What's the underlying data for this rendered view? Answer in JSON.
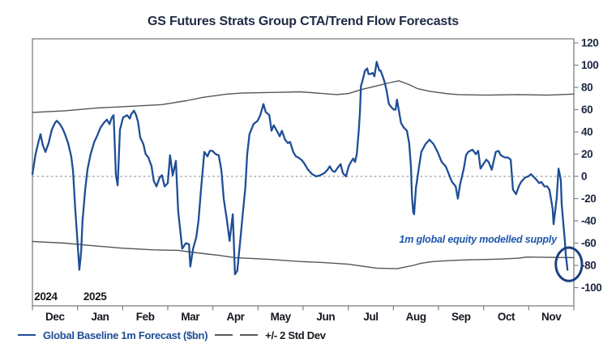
{
  "title": "GS Futures Strats Group CTA/Trend Flow Forecasts",
  "legend": {
    "items": [
      {
        "label": "Global Baseline 1m Forecast ($bn)",
        "color": "#1f4e96"
      },
      {
        "label": "+/- 2 Std Dev",
        "color": "#595959"
      }
    ]
  },
  "colors": {
    "line": "#1f4e96",
    "band": "#555555",
    "frame": "#808080",
    "zero_line": "#ababab",
    "annotation": "#1e56ad",
    "ellipse": "#1b4080",
    "title_text": "#1e2a45",
    "axis_text": "#1c2640"
  },
  "chart_data": {
    "type": "line",
    "title": "GS Futures Strats Group CTA/Trend Flow Forecasts",
    "xlabel": "",
    "ylabel": "",
    "ylim": [
      -100,
      120
    ],
    "grid": false,
    "legend_position": "bottom",
    "y_axis": {
      "side": "right",
      "ticks": [
        120,
        100,
        80,
        60,
        40,
        20,
        0,
        -20,
        -40,
        -60,
        -80,
        -100
      ]
    },
    "x_axis": {
      "unit": "months since 2024-12-01",
      "range": [
        0,
        12
      ],
      "tick_labels": [
        "Dec",
        "Jan",
        "Feb",
        "Mar",
        "Apr",
        "May",
        "Jun",
        "Jul",
        "Aug",
        "Sep",
        "Oct",
        "Nov"
      ],
      "year_labels": [
        {
          "text": "2024",
          "t": 0.04
        },
        {
          "text": "2025",
          "t": 1.13
        }
      ]
    },
    "zero_line": {
      "value": 0,
      "style": "dotted"
    },
    "annotation": {
      "text": "1m global equity modelled supply",
      "t": 11.62,
      "v": -61,
      "anchor": "end"
    },
    "highlight_ellipse": {
      "t": 11.89,
      "v": -79,
      "rt": 0.29,
      "rv": 15
    },
    "series": [
      {
        "name": "Global Baseline 1m Forecast ($bn)",
        "color": "#1f4e96",
        "width": 2.3,
        "points": [
          [
            0,
            2
          ],
          [
            0.07,
            20
          ],
          [
            0.14,
            32
          ],
          [
            0.18,
            38
          ],
          [
            0.23,
            28
          ],
          [
            0.29,
            22
          ],
          [
            0.36,
            30
          ],
          [
            0.43,
            42
          ],
          [
            0.5,
            48
          ],
          [
            0.54,
            50
          ],
          [
            0.61,
            47
          ],
          [
            0.68,
            42
          ],
          [
            0.72,
            38
          ],
          [
            0.79,
            30
          ],
          [
            0.86,
            18
          ],
          [
            0.9,
            5
          ],
          [
            0.95,
            -30
          ],
          [
            1.01,
            -65
          ],
          [
            1.04,
            -84
          ],
          [
            1.08,
            -68
          ],
          [
            1.11,
            -40
          ],
          [
            1.17,
            -12
          ],
          [
            1.22,
            6
          ],
          [
            1.29,
            20
          ],
          [
            1.37,
            31
          ],
          [
            1.44,
            37
          ],
          [
            1.51,
            44
          ],
          [
            1.58,
            48
          ],
          [
            1.65,
            51
          ],
          [
            1.71,
            47
          ],
          [
            1.76,
            53
          ],
          [
            1.8,
            55
          ],
          [
            1.85,
            1
          ],
          [
            1.89,
            -8
          ],
          [
            1.94,
            42
          ],
          [
            2.01,
            53
          ],
          [
            2.1,
            55
          ],
          [
            2.16,
            52
          ],
          [
            2.19,
            56
          ],
          [
            2.25,
            59
          ],
          [
            2.3,
            55
          ],
          [
            2.34,
            49
          ],
          [
            2.39,
            35
          ],
          [
            2.46,
            29
          ],
          [
            2.51,
            20
          ],
          [
            2.57,
            17
          ],
          [
            2.64,
            9
          ],
          [
            2.69,
            -4
          ],
          [
            2.75,
            -9
          ],
          [
            2.82,
            -1
          ],
          [
            2.87,
            1
          ],
          [
            2.93,
            -9
          ],
          [
            3,
            -6
          ],
          [
            3.05,
            19
          ],
          [
            3.11,
            1
          ],
          [
            3.18,
            14
          ],
          [
            3.23,
            -31
          ],
          [
            3.32,
            -65
          ],
          [
            3.4,
            -60
          ],
          [
            3.47,
            -61
          ],
          [
            3.5,
            -81
          ],
          [
            3.56,
            -65
          ],
          [
            3.63,
            -55
          ],
          [
            3.68,
            -40
          ],
          [
            3.74,
            -10
          ],
          [
            3.81,
            22
          ],
          [
            3.88,
            18
          ],
          [
            3.93,
            23
          ],
          [
            3.99,
            23
          ],
          [
            4.06,
            20
          ],
          [
            4.13,
            19
          ],
          [
            4.19,
            5
          ],
          [
            4.24,
            -20
          ],
          [
            4.31,
            -39
          ],
          [
            4.37,
            -58
          ],
          [
            4.44,
            -34
          ],
          [
            4.46,
            -55
          ],
          [
            4.49,
            -88
          ],
          [
            4.54,
            -85
          ],
          [
            4.6,
            -60
          ],
          [
            4.67,
            -30
          ],
          [
            4.72,
            -10
          ],
          [
            4.76,
            20
          ],
          [
            4.81,
            38
          ],
          [
            4.9,
            47
          ],
          [
            4.99,
            50
          ],
          [
            5.05,
            55
          ],
          [
            5.12,
            65
          ],
          [
            5.17,
            58
          ],
          [
            5.25,
            55
          ],
          [
            5.3,
            41
          ],
          [
            5.35,
            46
          ],
          [
            5.43,
            40
          ],
          [
            5.48,
            36
          ],
          [
            5.53,
            41
          ],
          [
            5.6,
            33
          ],
          [
            5.66,
            30
          ],
          [
            5.71,
            31
          ],
          [
            5.78,
            22
          ],
          [
            5.84,
            18
          ],
          [
            5.89,
            17
          ],
          [
            5.96,
            15
          ],
          [
            6.02,
            12
          ],
          [
            6.11,
            6
          ],
          [
            6.2,
            2
          ],
          [
            6.29,
            0
          ],
          [
            6.38,
            1
          ],
          [
            6.47,
            3
          ],
          [
            6.54,
            6
          ],
          [
            6.59,
            9
          ],
          [
            6.65,
            5
          ],
          [
            6.7,
            4
          ],
          [
            6.77,
            8
          ],
          [
            6.83,
            11
          ],
          [
            6.88,
            3
          ],
          [
            6.95,
            0
          ],
          [
            7.01,
            9
          ],
          [
            7.06,
            13
          ],
          [
            7.11,
            16
          ],
          [
            7.15,
            13
          ],
          [
            7.19,
            20
          ],
          [
            7.23,
            40
          ],
          [
            7.26,
            58
          ],
          [
            7.28,
            81
          ],
          [
            7.31,
            85
          ],
          [
            7.37,
            95
          ],
          [
            7.42,
            97
          ],
          [
            7.45,
            92
          ],
          [
            7.49,
            92
          ],
          [
            7.54,
            93
          ],
          [
            7.58,
            90
          ],
          [
            7.63,
            103
          ],
          [
            7.69,
            95
          ],
          [
            7.72,
            95
          ],
          [
            7.78,
            88
          ],
          [
            7.81,
            84
          ],
          [
            7.85,
            77
          ],
          [
            7.9,
            65
          ],
          [
            7.96,
            62
          ],
          [
            8.01,
            60
          ],
          [
            8.05,
            60
          ],
          [
            8.08,
            69
          ],
          [
            8.14,
            55
          ],
          [
            8.17,
            48
          ],
          [
            8.23,
            44
          ],
          [
            8.3,
            41
          ],
          [
            8.35,
            30
          ],
          [
            8.39,
            9
          ],
          [
            8.41,
            -17
          ],
          [
            8.44,
            -32
          ],
          [
            8.46,
            -34
          ],
          [
            8.5,
            -10
          ],
          [
            8.57,
            9
          ],
          [
            8.62,
            22
          ],
          [
            8.71,
            29
          ],
          [
            8.8,
            33
          ],
          [
            8.89,
            29
          ],
          [
            8.98,
            22
          ],
          [
            9.07,
            13
          ],
          [
            9.16,
            9
          ],
          [
            9.25,
            0
          ],
          [
            9.3,
            -5
          ],
          [
            9.38,
            -9
          ],
          [
            9.43,
            -20
          ],
          [
            9.48,
            -7
          ],
          [
            9.56,
            7
          ],
          [
            9.61,
            19
          ],
          [
            9.66,
            22
          ],
          [
            9.75,
            24
          ],
          [
            9.83,
            20
          ],
          [
            9.88,
            23
          ],
          [
            9.93,
            7
          ],
          [
            10.01,
            12
          ],
          [
            10.06,
            15
          ],
          [
            10.11,
            13
          ],
          [
            10.18,
            6
          ],
          [
            10.27,
            22
          ],
          [
            10.33,
            23
          ],
          [
            10.38,
            19
          ],
          [
            10.47,
            17
          ],
          [
            10.54,
            17
          ],
          [
            10.6,
            15
          ],
          [
            10.65,
            -12
          ],
          [
            10.72,
            -16
          ],
          [
            10.78,
            -9
          ],
          [
            10.83,
            -5
          ],
          [
            10.92,
            -1
          ],
          [
            10.99,
            0
          ],
          [
            11.05,
            2
          ],
          [
            11.1,
            0
          ],
          [
            11.17,
            -3
          ],
          [
            11.23,
            -6
          ],
          [
            11.28,
            -5
          ],
          [
            11.35,
            -9
          ],
          [
            11.41,
            -9
          ],
          [
            11.46,
            -12
          ],
          [
            11.53,
            -29
          ],
          [
            11.55,
            -43
          ],
          [
            11.62,
            -20
          ],
          [
            11.66,
            7
          ],
          [
            11.71,
            -3
          ],
          [
            11.73,
            -25
          ],
          [
            11.77,
            -44
          ],
          [
            11.8,
            -58
          ],
          [
            11.82,
            -70
          ],
          [
            11.86,
            -84
          ]
        ]
      },
      {
        "name": "+2 Std Dev",
        "color": "#555555",
        "width": 1.4,
        "points": [
          [
            0,
            57.5
          ],
          [
            0.72,
            59
          ],
          [
            1.44,
            61.5
          ],
          [
            2.16,
            63
          ],
          [
            2.87,
            64.5
          ],
          [
            3.41,
            68
          ],
          [
            3.77,
            71
          ],
          [
            4.31,
            74
          ],
          [
            4.67,
            75
          ],
          [
            5.39,
            75.5
          ],
          [
            5.93,
            76
          ],
          [
            6.29,
            75
          ],
          [
            6.74,
            73.5
          ],
          [
            7.01,
            74.5
          ],
          [
            7.28,
            78
          ],
          [
            7.6,
            81
          ],
          [
            7.9,
            84
          ],
          [
            8.12,
            86
          ],
          [
            8.35,
            82.5
          ],
          [
            8.53,
            79
          ],
          [
            8.8,
            76.5
          ],
          [
            9.16,
            74.5
          ],
          [
            9.43,
            73.5
          ],
          [
            10.06,
            73
          ],
          [
            10.78,
            73.5
          ],
          [
            11.41,
            73
          ],
          [
            12,
            74
          ]
        ]
      },
      {
        "name": "-2 Std Dev",
        "color": "#555555",
        "width": 1.4,
        "points": [
          [
            0,
            -58.5
          ],
          [
            0.72,
            -60
          ],
          [
            1.26,
            -62
          ],
          [
            1.98,
            -64.5
          ],
          [
            2.69,
            -66
          ],
          [
            3.23,
            -66.5
          ],
          [
            3.5,
            -68
          ],
          [
            4.13,
            -71
          ],
          [
            4.49,
            -73
          ],
          [
            5.21,
            -74.5
          ],
          [
            5.93,
            -76.5
          ],
          [
            6.47,
            -77.5
          ],
          [
            7.01,
            -79
          ],
          [
            7.37,
            -81
          ],
          [
            7.63,
            -82.5
          ],
          [
            8.08,
            -83
          ],
          [
            8.44,
            -80
          ],
          [
            8.62,
            -78
          ],
          [
            8.89,
            -76.5
          ],
          [
            9.34,
            -75.5
          ],
          [
            9.7,
            -75
          ],
          [
            10.24,
            -74.5
          ],
          [
            10.78,
            -73.5
          ],
          [
            10.96,
            -72.5
          ],
          [
            12,
            -73
          ]
        ]
      }
    ]
  }
}
